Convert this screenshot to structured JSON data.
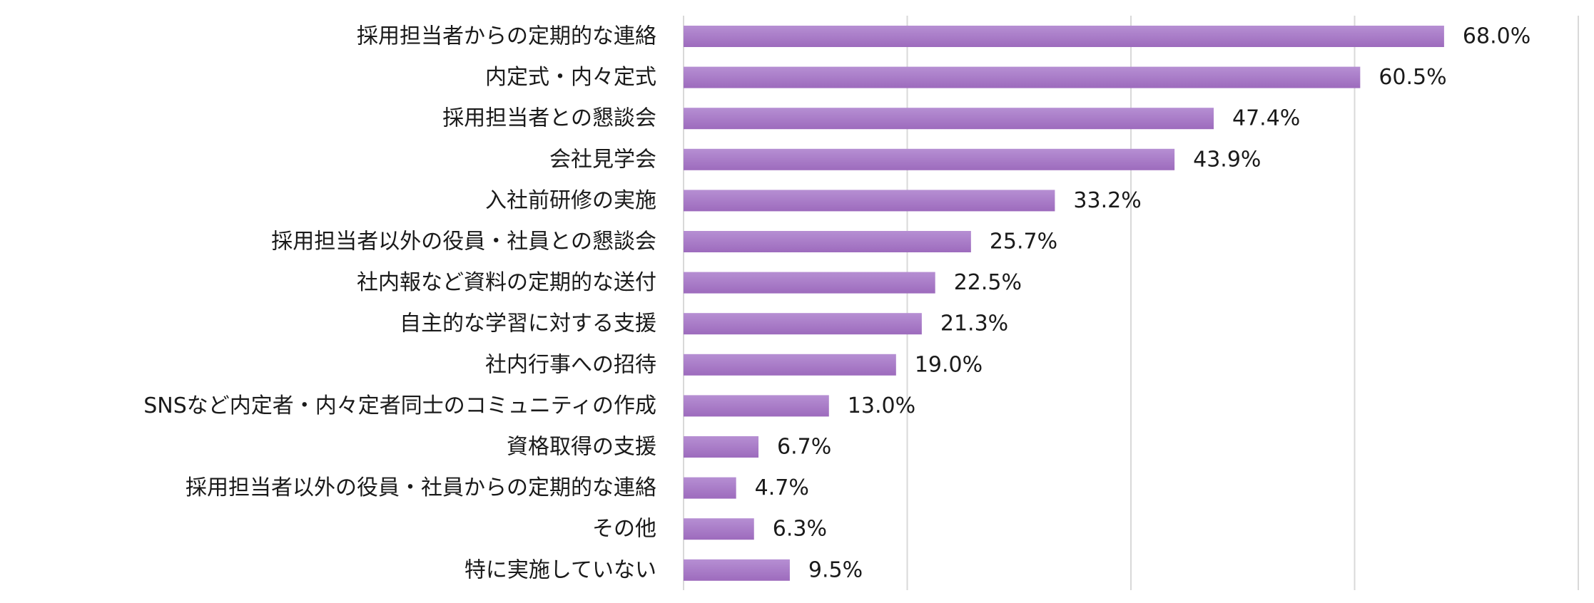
{
  "chart_data": {
    "type": "bar",
    "orientation": "horizontal",
    "categories": [
      "採用担当者からの定期的な連絡",
      "内定式・内々定式",
      "採用担当者との懇談会",
      "会社見学会",
      "入社前研修の実施",
      "採用担当者以外の役員・社員との懇談会",
      "社内報など資料の定期的な送付",
      "自主的な学習に対する支援",
      "社内行事への招待",
      "SNSなど内定者・内々定者同士のコミュニティの作成",
      "資格取得の支援",
      "採用担当者以外の役員・社員からの定期的な連絡",
      "その他",
      "特に実施していない"
    ],
    "values": [
      68.0,
      60.5,
      47.4,
      43.9,
      33.2,
      25.7,
      22.5,
      21.3,
      19.0,
      13.0,
      6.7,
      4.7,
      6.3,
      9.5
    ],
    "data_labels": [
      "68.0%",
      "60.5%",
      "47.4%",
      "43.9%",
      "33.2%",
      "25.7%",
      "22.5%",
      "21.3%",
      "19.0%",
      "13.0%",
      "6.7%",
      "4.7%",
      "6.3%",
      "9.5%"
    ],
    "xlim": [
      0,
      80
    ],
    "gridlines": [
      0,
      20,
      40,
      60,
      80
    ],
    "grid": true,
    "colors": {
      "bar_light": "#b68fd3",
      "bar_dark": "#9d6bbd",
      "grid": "#d9d9d9",
      "text": "#1a1a1a"
    }
  }
}
